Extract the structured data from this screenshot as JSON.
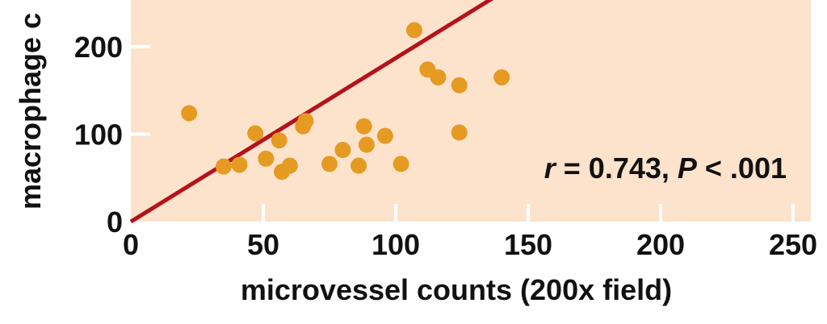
{
  "chart_data": {
    "type": "scatter",
    "title": "",
    "xlabel": "microvessel counts (200x field)",
    "ylabel": "macrophage c",
    "xlim": [
      0,
      255
    ],
    "ylim": [
      0,
      260
    ],
    "x_ticks": [
      0,
      50,
      100,
      150,
      200,
      250
    ],
    "y_ticks": [
      0,
      100,
      200
    ],
    "grid": false,
    "annotation": {
      "r_symbol": "r",
      "r_text": " = 0.743, ",
      "p_symbol": "P",
      "p_text": " < .001"
    },
    "colors": {
      "background": "#fde3cc",
      "points": "#e59a22",
      "fit_line": "#b5121b",
      "ticks": "#ffffff"
    },
    "fit_line": {
      "x": [
        0,
        139
      ],
      "y": [
        0,
        260
      ]
    },
    "points": [
      {
        "x": 22,
        "y": 124
      },
      {
        "x": 35,
        "y": 63
      },
      {
        "x": 41,
        "y": 65
      },
      {
        "x": 47,
        "y": 101
      },
      {
        "x": 51,
        "y": 72
      },
      {
        "x": 56,
        "y": 93
      },
      {
        "x": 57,
        "y": 57
      },
      {
        "x": 60,
        "y": 64
      },
      {
        "x": 65,
        "y": 109
      },
      {
        "x": 66,
        "y": 115
      },
      {
        "x": 75,
        "y": 66
      },
      {
        "x": 80,
        "y": 82
      },
      {
        "x": 86,
        "y": 64
      },
      {
        "x": 88,
        "y": 109
      },
      {
        "x": 89,
        "y": 88
      },
      {
        "x": 96,
        "y": 98
      },
      {
        "x": 102,
        "y": 66
      },
      {
        "x": 107,
        "y": 219
      },
      {
        "x": 112,
        "y": 174
      },
      {
        "x": 116,
        "y": 165
      },
      {
        "x": 124,
        "y": 156
      },
      {
        "x": 124,
        "y": 102
      },
      {
        "x": 140,
        "y": 165
      }
    ]
  }
}
